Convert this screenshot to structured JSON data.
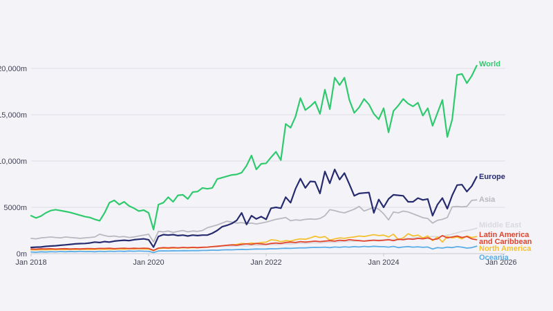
{
  "colors": {
    "background": "#f4f4f8",
    "gridline": "#dddde4",
    "axis_line": "#c6c6cf",
    "tick_text": "#3f3f52"
  },
  "chart_data": {
    "type": "line",
    "title": "",
    "xlabel": "",
    "ylabel": "",
    "unit": "m",
    "grid": "horizontal",
    "legend_position": "right-end-labels",
    "x_range": [
      "Jan 2018",
      "Jan 2026"
    ],
    "x_ticks": [
      "Jan 2018",
      "Jan 2020",
      "Jan 2022",
      "Jan 2024",
      "Jan 2026"
    ],
    "x_tick_months": [
      0,
      24,
      48,
      72,
      96
    ],
    "points_start": "Jan 2018",
    "points_interval": "monthly",
    "y_ticks": [
      "0m",
      "5000m",
      "10,000m",
      "15,000m",
      "20,000m"
    ],
    "y_tick_values": [
      0,
      5000,
      10000,
      15000,
      20000
    ],
    "ylim": [
      0,
      22400
    ],
    "series": [
      {
        "name": "Middle East",
        "color": "#d9d9e0",
        "values": [
          380,
          400,
          390,
          420,
          410,
          430,
          420,
          450,
          440,
          460,
          450,
          470,
          480,
          470,
          500,
          490,
          520,
          510,
          530,
          520,
          550,
          540,
          560,
          550,
          540,
          350,
          580,
          620,
          600,
          640,
          620,
          660,
          640,
          680,
          660,
          700,
          720,
          750,
          740,
          780,
          800,
          790,
          830,
          860,
          850,
          890,
          920,
          900,
          950,
          990,
          970,
          1020,
          1050,
          1030,
          1080,
          1120,
          1100,
          1150,
          1180,
          1160,
          1200,
          1250,
          1220,
          1280,
          1320,
          1300,
          1350,
          1400,
          1380,
          1450,
          1480,
          1460,
          1500,
          1550,
          1520,
          1600,
          1650,
          1620,
          1700,
          1750,
          1720,
          1800,
          1850,
          1820,
          1900,
          2000,
          2100,
          2250,
          2400,
          2500,
          2600,
          2750
        ]
      },
      {
        "name": "Oceania",
        "color": "#5aace6",
        "values": [
          180,
          150,
          200,
          170,
          220,
          190,
          230,
          200,
          240,
          210,
          250,
          220,
          230,
          200,
          250,
          220,
          260,
          230,
          270,
          240,
          280,
          250,
          290,
          260,
          250,
          120,
          280,
          300,
          290,
          310,
          300,
          320,
          310,
          330,
          320,
          340,
          350,
          380,
          360,
          400,
          420,
          410,
          440,
          460,
          450,
          480,
          500,
          490,
          500,
          530,
          520,
          560,
          580,
          570,
          600,
          630,
          620,
          660,
          680,
          670,
          700,
          650,
          720,
          680,
          740,
          700,
          760,
          720,
          780,
          740,
          800,
          760,
          750,
          700,
          780,
          650,
          720,
          760,
          700,
          740,
          680,
          720,
          500,
          650,
          600,
          700,
          650,
          750,
          700,
          600,
          650,
          800
        ]
      },
      {
        "name": "North America",
        "color": "#f4c02f",
        "values": [
          420,
          400,
          440,
          410,
          450,
          420,
          460,
          430,
          470,
          440,
          480,
          450,
          470,
          450,
          490,
          460,
          500,
          470,
          510,
          480,
          520,
          490,
          530,
          500,
          490,
          320,
          550,
          600,
          570,
          620,
          590,
          640,
          610,
          660,
          630,
          680,
          700,
          750,
          800,
          850,
          900,
          950,
          1000,
          1100,
          1050,
          1150,
          1100,
          1200,
          1250,
          1500,
          1450,
          1300,
          1400,
          1350,
          1500,
          1600,
          1550,
          1700,
          1870,
          1750,
          1850,
          1450,
          1600,
          1700,
          1650,
          1750,
          1800,
          1900,
          1850,
          1950,
          2050,
          1950,
          2000,
          1800,
          2100,
          1500,
          1700,
          2150,
          1900,
          2000,
          1700,
          1900,
          1400,
          1800,
          1250,
          1850,
          1700,
          1800,
          1600,
          1900,
          1750,
          1850
        ]
      },
      {
        "name": "Latin America and Caribbean",
        "label_lines": [
          "Latin America",
          "and Caribbean"
        ],
        "color": "#e1432c",
        "values": [
          500,
          480,
          520,
          510,
          530,
          490,
          520,
          540,
          500,
          530,
          510,
          540,
          550,
          530,
          570,
          560,
          580,
          540,
          570,
          590,
          550,
          580,
          560,
          590,
          570,
          350,
          600,
          650,
          620,
          660,
          630,
          670,
          640,
          680,
          650,
          690,
          700,
          750,
          800,
          850,
          900,
          950,
          900,
          1000,
          1050,
          1000,
          1100,
          1050,
          1000,
          1100,
          1150,
          1100,
          1200,
          1250,
          1200,
          1300,
          1250,
          1300,
          1350,
          1300,
          1350,
          1400,
          1350,
          1450,
          1400,
          1500,
          1450,
          1400,
          1350,
          1400,
          1450,
          1400,
          1450,
          1500,
          1400,
          1550,
          1500,
          1600,
          1550,
          1650,
          1600,
          1700,
          1500,
          1600,
          1950,
          1700,
          1800,
          1900,
          1750,
          1850,
          1600,
          1500
        ]
      },
      {
        "name": "Asia",
        "color": "#b8b8c0",
        "values": [
          1650,
          1600,
          1700,
          1750,
          1800,
          1750,
          1700,
          1800,
          1750,
          1700,
          1650,
          1700,
          1750,
          1800,
          2100,
          1950,
          1850,
          1900,
          1800,
          1850,
          1750,
          1800,
          1900,
          2000,
          2100,
          1270,
          2400,
          2350,
          2450,
          2300,
          2400,
          2500,
          2350,
          2450,
          2400,
          2500,
          2800,
          2950,
          3100,
          3300,
          3500,
          3400,
          3300,
          3350,
          3250,
          3300,
          3200,
          3300,
          3400,
          3550,
          3700,
          3800,
          3900,
          3550,
          3650,
          3600,
          3700,
          3750,
          3700,
          3800,
          4100,
          4750,
          4650,
          4500,
          4400,
          4600,
          4800,
          5100,
          4600,
          4800,
          5000,
          4800,
          4300,
          3650,
          4500,
          4400,
          4600,
          4500,
          4300,
          4100,
          3880,
          3800,
          3300,
          3600,
          3700,
          3900,
          5050,
          5100,
          5050,
          5100,
          5750,
          5800
        ]
      },
      {
        "name": "Europe",
        "color": "#262a6e",
        "values": [
          670,
          700,
          720,
          780,
          820,
          850,
          900,
          950,
          1000,
          1050,
          1080,
          1100,
          1150,
          1250,
          1200,
          1300,
          1250,
          1350,
          1400,
          1450,
          1400,
          1500,
          1550,
          1600,
          1500,
          700,
          1850,
          2050,
          2000,
          2050,
          1950,
          2000,
          1900,
          2000,
          1950,
          2000,
          2000,
          2200,
          2500,
          2900,
          3050,
          3250,
          3600,
          4400,
          3150,
          4100,
          3750,
          4000,
          3700,
          4900,
          5000,
          4900,
          6100,
          5500,
          7000,
          8100,
          7100,
          7800,
          7760,
          6500,
          8870,
          7600,
          9100,
          8000,
          8700,
          7500,
          6250,
          6500,
          6550,
          6600,
          4400,
          5850,
          5000,
          5900,
          6350,
          6300,
          6250,
          5600,
          5600,
          6000,
          5800,
          5900,
          4100,
          5300,
          6000,
          4850,
          6300,
          7400,
          7450,
          6700,
          7300,
          8300
        ]
      },
      {
        "name": "World",
        "color": "#2fc96e",
        "values": [
          4100,
          3850,
          4050,
          4400,
          4650,
          4750,
          4650,
          4550,
          4450,
          4300,
          4150,
          4000,
          3900,
          3700,
          3550,
          4400,
          5500,
          5750,
          5300,
          5600,
          5150,
          4900,
          4600,
          4700,
          4400,
          2600,
          5300,
          5500,
          6100,
          5600,
          6300,
          6350,
          5900,
          6650,
          6700,
          7100,
          7000,
          7100,
          8050,
          8200,
          8350,
          8500,
          8550,
          8750,
          9500,
          10600,
          9100,
          9700,
          9750,
          10400,
          11000,
          10100,
          14000,
          13600,
          14800,
          16800,
          15500,
          15900,
          16400,
          15100,
          17700,
          15600,
          19000,
          18200,
          19000,
          16600,
          15200,
          15800,
          16700,
          16100,
          15100,
          14500,
          15700,
          13100,
          15400,
          16000,
          16700,
          16200,
          15900,
          16300,
          14900,
          15700,
          13800,
          15200,
          16600,
          12600,
          14500,
          19300,
          19400,
          18400,
          19200,
          20300
        ]
      }
    ]
  }
}
